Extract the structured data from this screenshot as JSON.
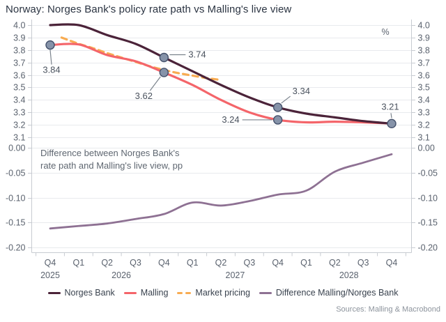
{
  "title": "Norway: Norges Bank's policy rate path vs Malling's live view",
  "unit_label": "%",
  "source": "Sources: Malling & Macrobond",
  "annotation": {
    "line1": "Difference between Norges Bank's",
    "line2": "rate path and Malling's live view, pp"
  },
  "legend": {
    "items": [
      {
        "label": "Norges Bank",
        "color": "#4B2339",
        "style": "solid"
      },
      {
        "label": "Malling",
        "color": "#F4656A",
        "style": "solid"
      },
      {
        "label": "Market pricing",
        "color": "#F8AC52",
        "style": "dashed"
      },
      {
        "label": "Difference Malling/Norges Bank",
        "color": "#8E7193",
        "style": "solid"
      }
    ]
  },
  "colors": {
    "marker_fill": "#8693A9",
    "marker_stroke": "#44516B",
    "grid": "#E8EAED",
    "axis": "#C7CBD1",
    "axis_text": "#5A626E",
    "label_text": "#4A525E",
    "annotation_text": "#5F6771",
    "leader": "#7A828C"
  },
  "chart_data": [
    {
      "type": "line",
      "panel": "policy-rate",
      "title": "Norway: Norges Bank's policy rate path vs Malling's live view",
      "ylabel": "%",
      "ylim": [
        3.1,
        4.0
      ],
      "yticks": [
        "4.0",
        "3.9",
        "3.8",
        "3.7",
        "3.6",
        "3.5",
        "3.4",
        "3.3",
        "3.2",
        "3.1"
      ],
      "grid": true,
      "legend_position": "bottom",
      "categories": [
        "Q4",
        "Q1",
        "Q2",
        "Q3",
        "Q4",
        "Q1",
        "Q2",
        "Q3",
        "Q4",
        "Q1",
        "Q2",
        "Q3",
        "Q4"
      ],
      "year_labels": [
        {
          "label": "2025",
          "index": 0
        },
        {
          "label": "2026",
          "index": 2.5
        },
        {
          "label": "2027",
          "index": 6.5
        },
        {
          "label": "2028",
          "index": 10.5
        }
      ],
      "series": [
        {
          "name": "Norges Bank",
          "values": [
            4.0,
            4.0,
            3.92,
            3.85,
            3.74,
            3.63,
            3.52,
            3.42,
            3.34,
            3.29,
            3.26,
            3.23,
            3.21
          ]
        },
        {
          "name": "Malling",
          "values": [
            3.84,
            3.845,
            3.76,
            3.71,
            3.62,
            3.52,
            3.4,
            3.3,
            3.24,
            3.22,
            3.225,
            3.22,
            3.21
          ]
        },
        {
          "name": "Market pricing",
          "points": [
            [
              0.4,
              3.9
            ],
            [
              1,
              3.85
            ],
            [
              1.5,
              3.815
            ],
            [
              2,
              3.775
            ],
            [
              2.5,
              3.74
            ],
            [
              3,
              3.705
            ],
            [
              3.5,
              3.67
            ],
            [
              4,
              3.64
            ],
            [
              4.5,
              3.615
            ],
            [
              5,
              3.595
            ],
            [
              5.5,
              3.575
            ],
            [
              6,
              3.56
            ]
          ]
        }
      ],
      "point_labels": [
        {
          "text": "3.84",
          "x": 0,
          "value": 3.84,
          "placement": "below"
        },
        {
          "text": "3.74",
          "x": 4,
          "value": 3.74,
          "placement": "right"
        },
        {
          "text": "3.62",
          "x": 4,
          "value": 3.62,
          "placement": "below-left"
        },
        {
          "text": "3.34",
          "x": 8,
          "value": 3.34,
          "placement": "above-right"
        },
        {
          "text": "3.24",
          "x": 8,
          "value": 3.24,
          "placement": "left"
        },
        {
          "text": "3.21",
          "x": 12,
          "value": 3.21,
          "placement": "above"
        }
      ]
    },
    {
      "type": "line",
      "panel": "difference",
      "title": "Difference between Norges Bank's rate path and Malling's live view, pp",
      "ylim": [
        -0.2,
        0.0
      ],
      "yticks": [
        "0.00",
        "-0.05",
        "-0.10",
        "-0.15",
        "-0.20"
      ],
      "grid": true,
      "series": [
        {
          "name": "Difference Malling/Norges Bank",
          "values": [
            -0.162,
            -0.157,
            -0.152,
            -0.143,
            -0.133,
            -0.11,
            -0.116,
            -0.107,
            -0.094,
            -0.086,
            -0.048,
            -0.03,
            -0.013
          ]
        }
      ]
    }
  ]
}
